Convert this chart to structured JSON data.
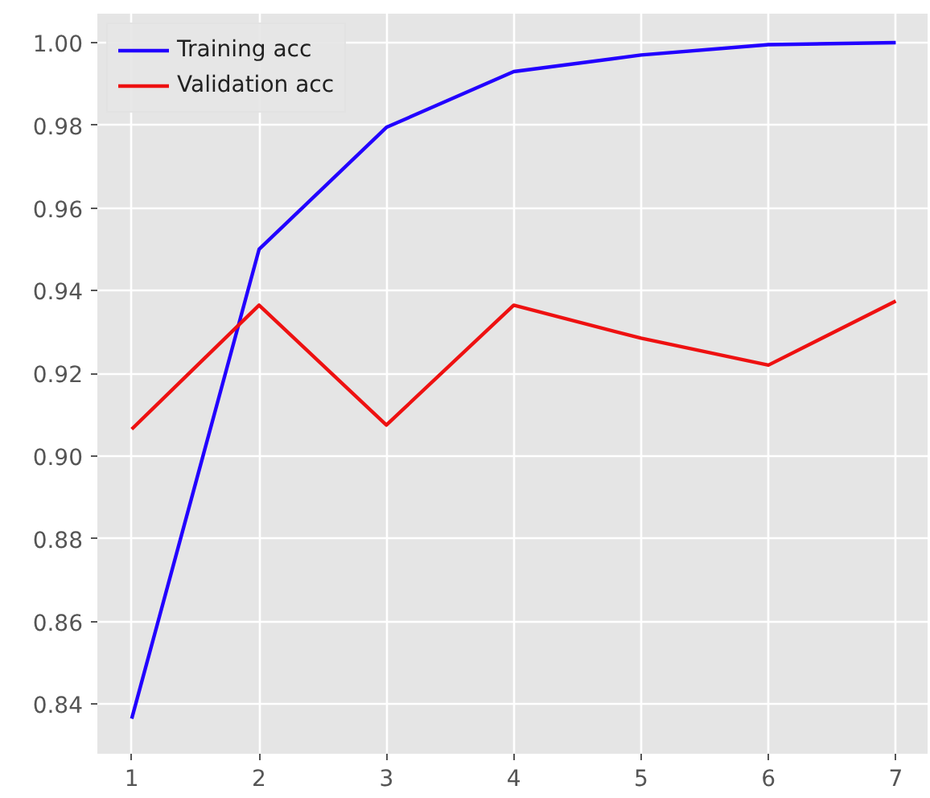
{
  "chart_data": {
    "type": "line",
    "x": [
      1,
      2,
      3,
      4,
      5,
      6,
      7
    ],
    "series": [
      {
        "name": "Training acc",
        "color": "#2200ff",
        "values": [
          0.8365,
          0.95,
          0.9795,
          0.993,
          0.997,
          0.9995,
          1.0
        ]
      },
      {
        "name": "Validation acc",
        "color": "#ee1111",
        "values": [
          0.9065,
          0.9365,
          0.9075,
          0.9365,
          0.9285,
          0.922,
          0.9375
        ]
      }
    ],
    "xlim": [
      0.73,
      7.25
    ],
    "ylim": [
      0.828,
      1.007
    ],
    "xticks": [
      1,
      2,
      3,
      4,
      5,
      6,
      7
    ],
    "yticks": [
      {
        "value": 0.84,
        "label": "0.84"
      },
      {
        "value": 0.86,
        "label": "0.86"
      },
      {
        "value": 0.88,
        "label": "0.88"
      },
      {
        "value": 0.9,
        "label": "0.90"
      },
      {
        "value": 0.92,
        "label": "0.92"
      },
      {
        "value": 0.94,
        "label": "0.94"
      },
      {
        "value": 0.96,
        "label": "0.96"
      },
      {
        "value": 0.98,
        "label": "0.98"
      },
      {
        "value": 1.0,
        "label": "1.00"
      }
    ],
    "grid": true,
    "legend": "top left",
    "marker": "none",
    "line_style": "solid"
  }
}
